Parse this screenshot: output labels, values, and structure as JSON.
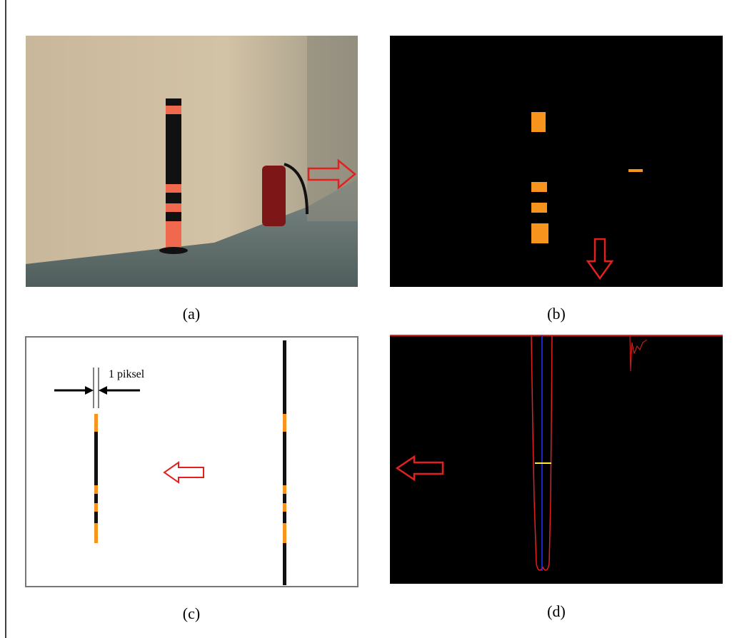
{
  "figure": {
    "annotation": "1 piksel",
    "captions": [
      "(a)",
      "(b)",
      "(c)",
      "(d)"
    ]
  }
}
